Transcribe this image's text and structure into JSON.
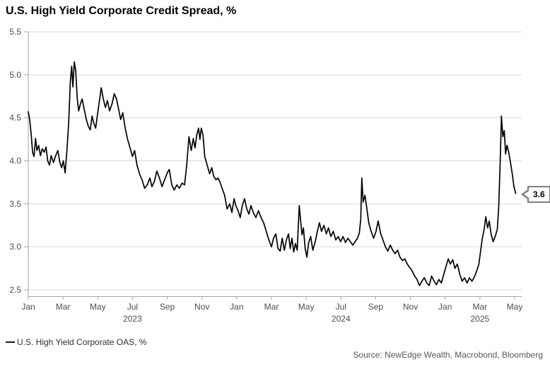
{
  "header": {
    "title": "U.S. High Yield Corporate Credit Spread, %"
  },
  "legend": {
    "label": "U.S. High Yield Corporate OAS, %"
  },
  "footer": {
    "source": "Source: NewEdge Wealth, Macrobond, Bloomberg"
  },
  "callout": {
    "value": "3.6"
  },
  "colors": {
    "series": "#000000",
    "grid": "#d9d9d9",
    "axis": "#a6a6a6",
    "tick_label": "#4d4d4d",
    "title": "#000000",
    "callout_border": "#7f7f7f",
    "source_text": "#595959"
  },
  "chart_data": {
    "type": "line",
    "title": "U.S. High Yield Corporate Credit Spread, %",
    "xlabel": "",
    "ylabel": "",
    "ylim": [
      2.5,
      5.5
    ],
    "grid": "horizontal",
    "legend_position": "bottom-left",
    "y_ticks": [
      "5.5",
      "5.0",
      "4.5",
      "4.0",
      "3.5",
      "3.0",
      "2.5"
    ],
    "x_tick_labels": [
      "Jan",
      "Mar",
      "May",
      "Jul",
      "Sep",
      "Nov",
      "Jan",
      "Mar",
      "May",
      "Jul",
      "Sep",
      "Nov",
      "Jan",
      "Mar",
      "May"
    ],
    "x_tick_months": [
      0,
      2,
      4,
      6,
      8,
      10,
      12,
      14,
      16,
      18,
      20,
      22,
      24,
      26,
      28
    ],
    "year_labels": [
      {
        "tick_index": 3,
        "label": "2023"
      },
      {
        "tick_index": 9,
        "label": "2024"
      },
      {
        "tick_index": 13,
        "label": "2025"
      }
    ],
    "last_value": 3.6,
    "series": [
      {
        "name": "U.S. High Yield Corporate OAS, %",
        "color": "#000000",
        "x_unit": "months since 2023-01-01",
        "points": [
          [
            0.0,
            4.57
          ],
          [
            0.08,
            4.48
          ],
          [
            0.17,
            4.3
          ],
          [
            0.25,
            4.1
          ],
          [
            0.33,
            4.05
          ],
          [
            0.42,
            4.26
          ],
          [
            0.5,
            4.12
          ],
          [
            0.6,
            4.18
          ],
          [
            0.7,
            4.06
          ],
          [
            0.8,
            4.14
          ],
          [
            0.92,
            4.1
          ],
          [
            1.02,
            4.16
          ],
          [
            1.12,
            4.0
          ],
          [
            1.22,
            3.95
          ],
          [
            1.32,
            4.06
          ],
          [
            1.45,
            3.98
          ],
          [
            1.58,
            4.06
          ],
          [
            1.7,
            4.12
          ],
          [
            1.82,
            3.98
          ],
          [
            1.92,
            3.92
          ],
          [
            2.02,
            4.0
          ],
          [
            2.12,
            3.86
          ],
          [
            2.22,
            4.1
          ],
          [
            2.32,
            4.42
          ],
          [
            2.42,
            4.92
          ],
          [
            2.5,
            5.1
          ],
          [
            2.57,
            4.86
          ],
          [
            2.65,
            5.15
          ],
          [
            2.73,
            5.05
          ],
          [
            2.82,
            4.72
          ],
          [
            2.9,
            4.58
          ],
          [
            3.0,
            4.66
          ],
          [
            3.1,
            4.72
          ],
          [
            3.22,
            4.6
          ],
          [
            3.34,
            4.48
          ],
          [
            3.46,
            4.4
          ],
          [
            3.57,
            4.36
          ],
          [
            3.67,
            4.52
          ],
          [
            3.77,
            4.44
          ],
          [
            3.88,
            4.38
          ],
          [
            4.0,
            4.56
          ],
          [
            4.1,
            4.7
          ],
          [
            4.2,
            4.85
          ],
          [
            4.32,
            4.72
          ],
          [
            4.44,
            4.62
          ],
          [
            4.56,
            4.7
          ],
          [
            4.68,
            4.58
          ],
          [
            4.82,
            4.66
          ],
          [
            4.95,
            4.78
          ],
          [
            5.08,
            4.72
          ],
          [
            5.2,
            4.6
          ],
          [
            5.32,
            4.48
          ],
          [
            5.44,
            4.56
          ],
          [
            5.58,
            4.38
          ],
          [
            5.72,
            4.25
          ],
          [
            5.86,
            4.15
          ],
          [
            6.0,
            4.05
          ],
          [
            6.12,
            4.12
          ],
          [
            6.26,
            3.95
          ],
          [
            6.4,
            3.85
          ],
          [
            6.55,
            3.78
          ],
          [
            6.7,
            3.68
          ],
          [
            6.85,
            3.72
          ],
          [
            7.0,
            3.8
          ],
          [
            7.12,
            3.7
          ],
          [
            7.26,
            3.76
          ],
          [
            7.4,
            3.88
          ],
          [
            7.55,
            3.8
          ],
          [
            7.7,
            3.7
          ],
          [
            7.85,
            3.78
          ],
          [
            8.0,
            3.86
          ],
          [
            8.12,
            3.9
          ],
          [
            8.26,
            3.72
          ],
          [
            8.4,
            3.66
          ],
          [
            8.55,
            3.72
          ],
          [
            8.7,
            3.68
          ],
          [
            8.85,
            3.74
          ],
          [
            9.0,
            3.72
          ],
          [
            9.12,
            3.95
          ],
          [
            9.25,
            4.28
          ],
          [
            9.38,
            4.12
          ],
          [
            9.5,
            4.26
          ],
          [
            9.6,
            4.15
          ],
          [
            9.7,
            4.3
          ],
          [
            9.8,
            4.38
          ],
          [
            9.88,
            4.25
          ],
          [
            9.96,
            4.38
          ],
          [
            10.06,
            4.3
          ],
          [
            10.16,
            4.05
          ],
          [
            10.3,
            3.95
          ],
          [
            10.44,
            3.85
          ],
          [
            10.56,
            3.92
          ],
          [
            10.68,
            3.82
          ],
          [
            10.8,
            3.78
          ],
          [
            10.92,
            3.8
          ],
          [
            11.04,
            3.75
          ],
          [
            11.16,
            3.68
          ],
          [
            11.3,
            3.6
          ],
          [
            11.45,
            3.44
          ],
          [
            11.6,
            3.5
          ],
          [
            11.72,
            3.4
          ],
          [
            11.85,
            3.56
          ],
          [
            11.95,
            3.48
          ],
          [
            12.08,
            3.42
          ],
          [
            12.2,
            3.34
          ],
          [
            12.32,
            3.48
          ],
          [
            12.45,
            3.56
          ],
          [
            12.58,
            3.44
          ],
          [
            12.7,
            3.38
          ],
          [
            12.82,
            3.48
          ],
          [
            12.95,
            3.4
          ],
          [
            13.1,
            3.34
          ],
          [
            13.25,
            3.42
          ],
          [
            13.4,
            3.34
          ],
          [
            13.55,
            3.28
          ],
          [
            13.7,
            3.18
          ],
          [
            13.85,
            3.08
          ],
          [
            14.0,
            3.0
          ],
          [
            14.12,
            3.1
          ],
          [
            14.25,
            3.15
          ],
          [
            14.38,
            2.98
          ],
          [
            14.5,
            2.95
          ],
          [
            14.62,
            3.1
          ],
          [
            14.74,
            2.96
          ],
          [
            14.86,
            3.08
          ],
          [
            14.98,
            3.15
          ],
          [
            15.08,
            2.98
          ],
          [
            15.18,
            3.1
          ],
          [
            15.28,
            2.94
          ],
          [
            15.38,
            3.04
          ],
          [
            15.48,
            2.96
          ],
          [
            15.6,
            3.48
          ],
          [
            15.68,
            3.3
          ],
          [
            15.76,
            3.14
          ],
          [
            15.84,
            3.22
          ],
          [
            15.94,
            2.98
          ],
          [
            16.04,
            2.88
          ],
          [
            16.14,
            3.05
          ],
          [
            16.26,
            3.12
          ],
          [
            16.38,
            2.96
          ],
          [
            16.52,
            3.06
          ],
          [
            16.64,
            3.18
          ],
          [
            16.76,
            3.28
          ],
          [
            16.88,
            3.18
          ],
          [
            17.02,
            3.25
          ],
          [
            17.16,
            3.15
          ],
          [
            17.28,
            3.22
          ],
          [
            17.42,
            3.12
          ],
          [
            17.56,
            3.18
          ],
          [
            17.7,
            3.08
          ],
          [
            17.84,
            3.12
          ],
          [
            17.98,
            3.06
          ],
          [
            18.12,
            3.12
          ],
          [
            18.26,
            3.05
          ],
          [
            18.4,
            3.1
          ],
          [
            18.54,
            3.06
          ],
          [
            18.68,
            3.02
          ],
          [
            18.82,
            3.06
          ],
          [
            18.95,
            3.1
          ],
          [
            19.06,
            3.16
          ],
          [
            19.14,
            3.32
          ],
          [
            19.2,
            3.8
          ],
          [
            19.28,
            3.52
          ],
          [
            19.38,
            3.6
          ],
          [
            19.48,
            3.46
          ],
          [
            19.6,
            3.28
          ],
          [
            19.74,
            3.18
          ],
          [
            19.88,
            3.1
          ],
          [
            20.02,
            3.18
          ],
          [
            20.14,
            3.3
          ],
          [
            20.28,
            3.16
          ],
          [
            20.42,
            3.08
          ],
          [
            20.56,
            3.0
          ],
          [
            20.7,
            2.95
          ],
          [
            20.84,
            3.02
          ],
          [
            20.98,
            2.96
          ],
          [
            21.12,
            2.92
          ],
          [
            21.26,
            2.96
          ],
          [
            21.4,
            2.88
          ],
          [
            21.54,
            2.84
          ],
          [
            21.68,
            2.86
          ],
          [
            21.82,
            2.8
          ],
          [
            21.96,
            2.76
          ],
          [
            22.1,
            2.72
          ],
          [
            22.24,
            2.66
          ],
          [
            22.38,
            2.62
          ],
          [
            22.52,
            2.55
          ],
          [
            22.66,
            2.6
          ],
          [
            22.8,
            2.64
          ],
          [
            22.94,
            2.58
          ],
          [
            23.08,
            2.55
          ],
          [
            23.22,
            2.66
          ],
          [
            23.36,
            2.6
          ],
          [
            23.5,
            2.56
          ],
          [
            23.64,
            2.62
          ],
          [
            23.78,
            2.58
          ],
          [
            23.92,
            2.68
          ],
          [
            24.06,
            2.78
          ],
          [
            24.18,
            2.86
          ],
          [
            24.3,
            2.8
          ],
          [
            24.44,
            2.85
          ],
          [
            24.56,
            2.75
          ],
          [
            24.7,
            2.8
          ],
          [
            24.84,
            2.68
          ],
          [
            24.98,
            2.6
          ],
          [
            25.12,
            2.64
          ],
          [
            25.26,
            2.58
          ],
          [
            25.4,
            2.64
          ],
          [
            25.54,
            2.6
          ],
          [
            25.68,
            2.65
          ],
          [
            25.82,
            2.72
          ],
          [
            25.94,
            2.8
          ],
          [
            26.04,
            2.95
          ],
          [
            26.14,
            3.1
          ],
          [
            26.24,
            3.2
          ],
          [
            26.34,
            3.35
          ],
          [
            26.44,
            3.22
          ],
          [
            26.54,
            3.3
          ],
          [
            26.64,
            3.15
          ],
          [
            26.76,
            3.06
          ],
          [
            26.88,
            3.12
          ],
          [
            27.0,
            3.2
          ],
          [
            27.08,
            3.45
          ],
          [
            27.16,
            3.95
          ],
          [
            27.24,
            4.52
          ],
          [
            27.32,
            4.28
          ],
          [
            27.4,
            4.35
          ],
          [
            27.48,
            4.08
          ],
          [
            27.56,
            4.18
          ],
          [
            27.66,
            4.1
          ],
          [
            27.76,
            3.98
          ],
          [
            27.86,
            3.85
          ],
          [
            27.96,
            3.7
          ],
          [
            28.06,
            3.62
          ]
        ]
      }
    ]
  }
}
